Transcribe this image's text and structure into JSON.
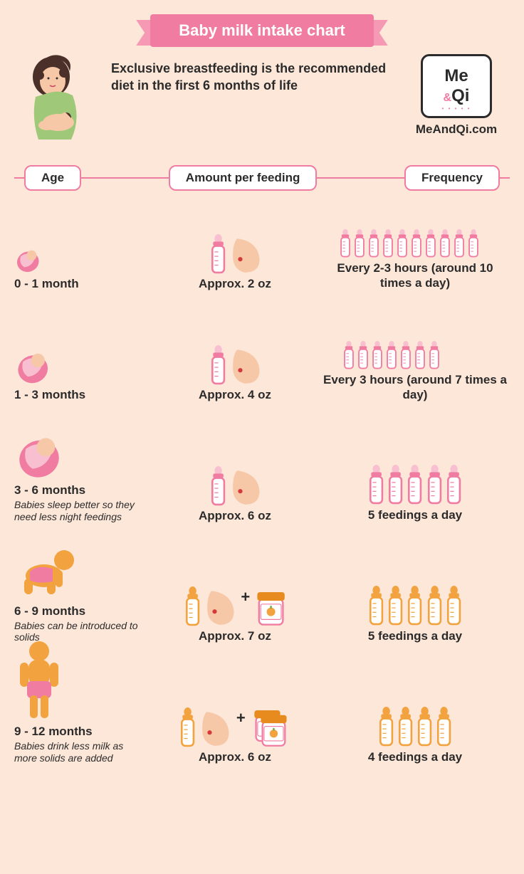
{
  "title": "Baby milk intake chart",
  "intro": "Exclusive breastfeeding is the recommended diet in the first 6 months of life",
  "brand": {
    "line1": "Me",
    "amp": "&",
    "line2": "Qi",
    "url": "MeAndQi.com"
  },
  "colors": {
    "background": "#fde7d9",
    "pink": "#f17ca1",
    "pink_light": "#f599b5",
    "pink_fill": "#f8bfd0",
    "orange": "#f2a23e",
    "orange_dark": "#e88b1f",
    "peach": "#f7c8a8",
    "text": "#2b2b2b",
    "white": "#ffffff",
    "red": "#d53a3a",
    "jar_lid": "#e88b1f",
    "jar_label": "#ffffff"
  },
  "columns": {
    "age": "Age",
    "amount": "Amount per feeding",
    "frequency": "Frequency"
  },
  "rows": [
    {
      "age_label": "0 - 1 month",
      "age_note": "",
      "baby_type": "swaddle",
      "baby_scale": 0.55,
      "amount_label": "Approx. 2 oz",
      "amount_items": [
        "bottle_pink",
        "breast"
      ],
      "freq_label": "Every 2-3 hours (around 10 times a day)",
      "freq_bottles": 10,
      "freq_color": "pink",
      "layout": "two_rows"
    },
    {
      "age_label": "1 - 3 months",
      "age_note": "",
      "baby_type": "swaddle",
      "baby_scale": 0.75,
      "amount_label": "Approx. 4 oz",
      "amount_items": [
        "bottle_pink",
        "breast"
      ],
      "freq_label": "Every 3 hours (around 7 times a day)",
      "freq_bottles": 7,
      "freq_color": "pink",
      "layout": "two_rows_34"
    },
    {
      "age_label": "3 - 6 months",
      "age_note": "Babies sleep better so they need less night feedings",
      "baby_type": "swaddle",
      "baby_scale": 1.0,
      "amount_label": "Approx. 6 oz",
      "amount_items": [
        "bottle_pink",
        "breast"
      ],
      "freq_label": "5 feedings a day",
      "freq_bottles": 5,
      "freq_color": "pink",
      "layout": "one_row"
    },
    {
      "age_label": "6 - 9 months",
      "age_note": "Babies can be introduced to solids",
      "baby_type": "crawl",
      "baby_scale": 1.0,
      "amount_label": "Approx. 7 oz",
      "amount_items": [
        "bottle_orange",
        "breast",
        "plus",
        "jar1"
      ],
      "freq_label": "5 feedings a day",
      "freq_bottles": 5,
      "freq_color": "orange",
      "layout": "one_row"
    },
    {
      "age_label": "9 - 12 months",
      "age_note": "Babies drink less milk as more solids are added",
      "baby_type": "stand",
      "baby_scale": 1.0,
      "amount_label": "Approx. 6 oz",
      "amount_items": [
        "bottle_orange",
        "breast",
        "plus",
        "jar2"
      ],
      "freq_label": "4 feedings a day",
      "freq_bottles": 4,
      "freq_color": "orange",
      "layout": "one_row"
    }
  ]
}
